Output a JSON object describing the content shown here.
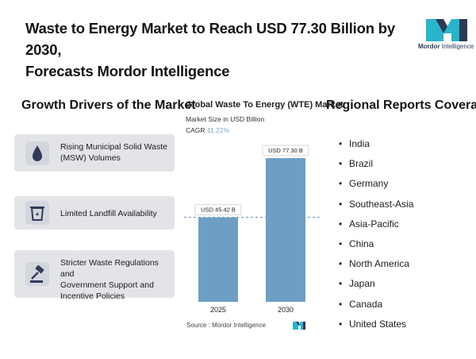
{
  "header": {
    "title_line1": "Waste to Energy Market to Reach USD 77.30 Billion by 2030,",
    "title_line2": "Forecasts Mordor Intelligence",
    "logo_text_bold": "Mordor",
    "logo_text_rest": "Intelligence"
  },
  "left": {
    "heading": "Growth Drivers of the Market",
    "drivers": [
      {
        "icon": "water-drop-icon",
        "line1": "Rising Municipal Solid Waste",
        "line2": "(MSW) Volumes",
        "line3": ""
      },
      {
        "icon": "recycle-bin-icon",
        "line1": "Limited Landfill Availability",
        "line2": "",
        "line3": ""
      },
      {
        "icon": "gavel-icon",
        "line1": "Stricter Waste Regulations and",
        "line2": "Government Support and",
        "line3": "Incentive Policies"
      }
    ]
  },
  "chart_header": {
    "title": "Global Waste To Energy (WTE) Market",
    "subtitle": "Market Size in USD Billion",
    "cagr_label": "CAGR",
    "cagr_value": "11.22%"
  },
  "chart_data": {
    "type": "bar",
    "title": "Global Waste To Energy (WTE) Market",
    "subtitle": "Market Size in USD Billion",
    "categories": [
      "2025",
      "2030"
    ],
    "values": [
      45.42,
      77.3
    ],
    "data_labels": [
      "USD 45.42 B",
      "USD 77.30 B"
    ],
    "ylim": [
      0,
      88
    ],
    "grid": false,
    "reference_line": "dashed at 2025 value",
    "bar_color": "#6d9ec3"
  },
  "right": {
    "heading": "Regional Reports Coverage",
    "bullet": "•",
    "regions": [
      "India",
      "Brazil",
      "Germany",
      "Southeast-Asia",
      "Asia-Pacific",
      "China",
      "North America",
      "Japan",
      "Canada",
      "United States"
    ]
  },
  "footer": {
    "source": "Source :  Mordor Intelligence"
  },
  "colors": {
    "brand_teal": "#28b5c9",
    "brand_navy": "#2b3a55",
    "bar": "#6d9ec3",
    "card_bg": "#e2e4e8",
    "icon_navy": "#2f3b58"
  }
}
